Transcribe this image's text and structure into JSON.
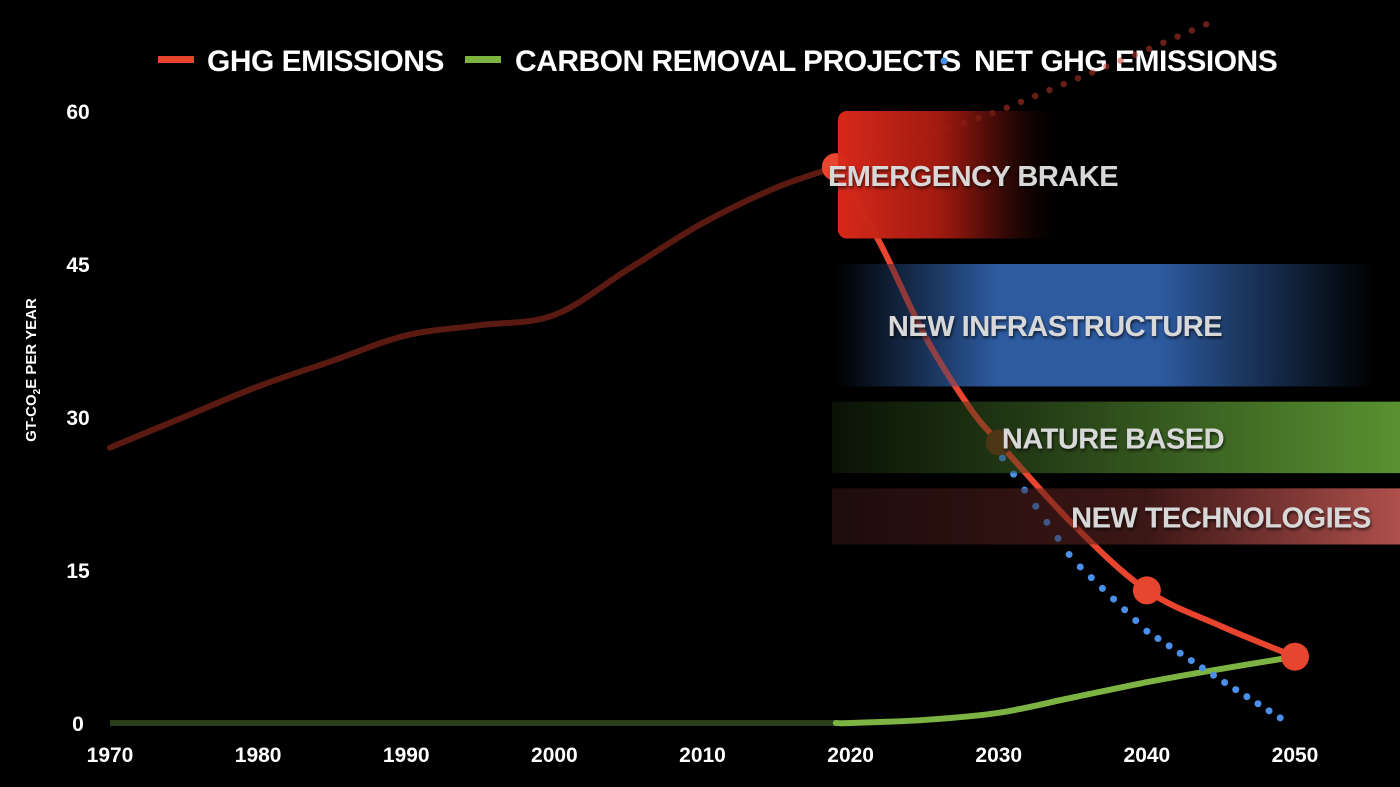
{
  "chart_data": {
    "type": "line",
    "title": "",
    "xlabel": "",
    "ylabel": "GT-CO2E PER YEAR",
    "ylabel_parts": {
      "pre": "GT-CO",
      "sub": "2",
      "post": "E PER YEAR"
    },
    "xlim": [
      1970,
      2050
    ],
    "ylim": [
      0,
      60
    ],
    "x_ticks": [
      1970,
      1980,
      1990,
      2000,
      2010,
      2020,
      2030,
      2040,
      2050
    ],
    "y_ticks": [
      0,
      15,
      30,
      45,
      60
    ],
    "grid": false,
    "legend_position": "top",
    "legend": [
      {
        "label": "GHG EMISSIONS",
        "color": "#e8452e",
        "marker": "line"
      },
      {
        "label": "CARBON REMOVAL PROJECTS",
        "color": "#7cb342",
        "marker": "line"
      },
      {
        "label": "NET GHG EMISSIONS",
        "color": "#4a8fe8",
        "marker": "dot"
      }
    ],
    "series": [
      {
        "name": "GHG EMISSIONS (historical)",
        "color": "#5a1a12",
        "style": "solid",
        "x": [
          1970,
          1975,
          1980,
          1985,
          1990,
          1995,
          2000,
          2005,
          2010,
          2015,
          2019
        ],
        "y": [
          27,
          30,
          33,
          35.5,
          38,
          39,
          40,
          44.5,
          49,
          52.5,
          54.5
        ]
      },
      {
        "name": "GHG EMISSIONS (pathway)",
        "color": "#e8452e",
        "style": "solid",
        "x": [
          2019,
          2022,
          2025,
          2028,
          2030,
          2035,
          2040,
          2045,
          2050
        ],
        "y": [
          54.5,
          47,
          38,
          31,
          27.5,
          19.5,
          13,
          9.5,
          6.5
        ],
        "markers": [
          {
            "x": 2019,
            "y": 54.5
          },
          {
            "x": 2030,
            "y": 27.5,
            "dimmed": true
          },
          {
            "x": 2040,
            "y": 13
          },
          {
            "x": 2050,
            "y": 6.5
          }
        ]
      },
      {
        "name": "GHG EMISSIONS (business as usual)",
        "color": "#e8452e",
        "style": "dotted-faded",
        "x": [
          2019,
          2025,
          2030,
          2035,
          2040,
          2044
        ],
        "y": [
          55,
          57.5,
          60,
          63,
          66,
          68.5
        ]
      },
      {
        "name": "CARBON REMOVAL PROJECTS",
        "color": "#7cb342",
        "historic_color": "#2a3d1a",
        "style": "solid",
        "x": [
          1970,
          2019,
          2020,
          2025,
          2030,
          2035,
          2040,
          2045,
          2050
        ],
        "y": [
          0,
          0,
          0,
          0.3,
          1,
          2.5,
          4,
          5.3,
          6.5
        ]
      },
      {
        "name": "NET GHG EMISSIONS",
        "color": "#4a8fe8",
        "style": "dotted",
        "x": [
          2019,
          2025,
          2030,
          2035,
          2040,
          2045,
          2049
        ],
        "y": [
          54,
          36,
          26.5,
          16,
          9,
          4.2,
          0.5
        ]
      }
    ],
    "bands": [
      {
        "label": "EMERGENCY BRAKE",
        "color": "#d8281a",
        "y_range": [
          47.5,
          60
        ],
        "x_range": [
          2019,
          2035
        ]
      },
      {
        "label": "NEW INFRASTRUCTURE",
        "color": "#2f5ea5",
        "y_range": [
          33,
          45
        ],
        "x_range": [
          2019,
          2050
        ]
      },
      {
        "label": "NATURE BASED",
        "color": "#5c9632",
        "y_range": [
          24.5,
          31.5
        ],
        "x_range": [
          2019,
          2050
        ]
      },
      {
        "label": "NEW TECHNOLOGIES",
        "color": "#b4524e",
        "y_range": [
          17.5,
          23
        ],
        "x_range": [
          2019,
          2050
        ]
      }
    ]
  }
}
